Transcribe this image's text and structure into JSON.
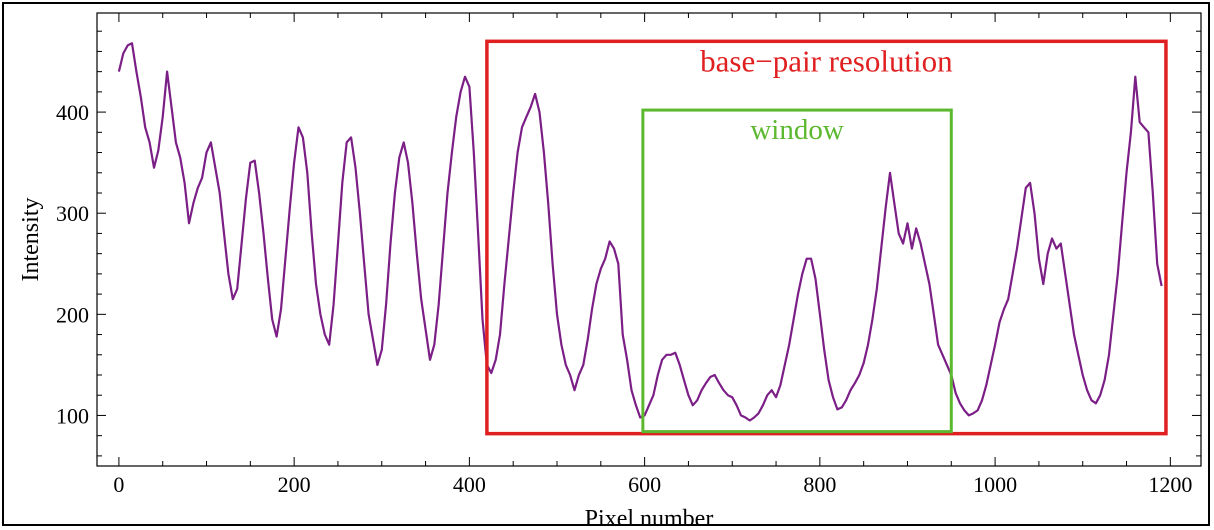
{
  "chart_data": {
    "type": "line",
    "title": "",
    "xlabel": "Pixel number",
    "ylabel": "Intensity",
    "xlim": [
      -25,
      1235
    ],
    "ylim": [
      50,
      498
    ],
    "xticks": [
      0,
      200,
      400,
      600,
      800,
      1000,
      1200
    ],
    "yticks": [
      100,
      200,
      300,
      400
    ],
    "grid": false,
    "line_color": "#7b1f86",
    "annotations": [
      {
        "label": "base−pair resolution",
        "color": "#e02020",
        "x_range": [
          420,
          1195
        ],
        "y_range": [
          82,
          470
        ]
      },
      {
        "label": "window",
        "color": "#5cb82e",
        "x_range": [
          598,
          950
        ],
        "y_range": [
          84,
          402
        ]
      }
    ],
    "series": [
      {
        "x": [
          0,
          5,
          10,
          15,
          20,
          25,
          30,
          35,
          40,
          45,
          50,
          55,
          60,
          65,
          70,
          75,
          80,
          85,
          90,
          95,
          100,
          105,
          110,
          115,
          120,
          125,
          130,
          135,
          140,
          145,
          150,
          155,
          160,
          165,
          170,
          175,
          180,
          185,
          190,
          195,
          200,
          205,
          210,
          215,
          220,
          225,
          230,
          235,
          240,
          245,
          250,
          255,
          260,
          265,
          270,
          275,
          280,
          285,
          290,
          295,
          300,
          305,
          310,
          315,
          320,
          325,
          330,
          335,
          340,
          345,
          350,
          355,
          360,
          365,
          370,
          375,
          380,
          385,
          390,
          395,
          400,
          405,
          410,
          415,
          420,
          425,
          430,
          435,
          440,
          445,
          450,
          455,
          460,
          465,
          470,
          475,
          480,
          485,
          490,
          495,
          500,
          505,
          510,
          515,
          520,
          525,
          530,
          535,
          540,
          545,
          550,
          555,
          560,
          565,
          570,
          575,
          580,
          585,
          590,
          595,
          600,
          605,
          610,
          615,
          620,
          625,
          630,
          635,
          640,
          645,
          650,
          655,
          660,
          665,
          670,
          675,
          680,
          685,
          690,
          695,
          700,
          705,
          710,
          715,
          720,
          725,
          730,
          735,
          740,
          745,
          750,
          755,
          760,
          765,
          770,
          775,
          780,
          785,
          790,
          795,
          800,
          805,
          810,
          815,
          820,
          825,
          830,
          835,
          840,
          845,
          850,
          855,
          860,
          865,
          870,
          875,
          880,
          885,
          890,
          895,
          900,
          905,
          910,
          915,
          920,
          925,
          930,
          935,
          940,
          945,
          950,
          955,
          960,
          965,
          970,
          975,
          980,
          985,
          990,
          995,
          1000,
          1005,
          1010,
          1015,
          1020,
          1025,
          1030,
          1035,
          1040,
          1045,
          1050,
          1055,
          1060,
          1065,
          1070,
          1075,
          1080,
          1085,
          1090,
          1095,
          1100,
          1105,
          1110,
          1115,
          1120,
          1125,
          1130,
          1135,
          1140,
          1145,
          1150,
          1155,
          1160,
          1165,
          1170,
          1175,
          1180,
          1185,
          1190
        ],
        "y": [
          440,
          458,
          466,
          468,
          440,
          415,
          385,
          370,
          345,
          362,
          395,
          440,
          405,
          370,
          355,
          330,
          290,
          310,
          325,
          335,
          360,
          370,
          345,
          320,
          280,
          240,
          215,
          225,
          270,
          315,
          350,
          352,
          320,
          280,
          235,
          195,
          178,
          205,
          255,
          305,
          350,
          385,
          375,
          340,
          280,
          230,
          200,
          180,
          170,
          210,
          270,
          330,
          370,
          375,
          345,
          300,
          250,
          200,
          175,
          150,
          165,
          210,
          270,
          320,
          355,
          370,
          350,
          310,
          260,
          215,
          185,
          155,
          170,
          210,
          265,
          320,
          360,
          395,
          420,
          435,
          425,
          360,
          280,
          195,
          150,
          142,
          155,
          180,
          230,
          275,
          320,
          360,
          385,
          395,
          405,
          418,
          400,
          360,
          310,
          250,
          200,
          170,
          150,
          140,
          125,
          140,
          150,
          175,
          205,
          230,
          245,
          255,
          272,
          265,
          250,
          180,
          155,
          125,
          110,
          98,
          100,
          110,
          120,
          140,
          155,
          160,
          160,
          162,
          150,
          135,
          120,
          110,
          115,
          125,
          132,
          138,
          140,
          132,
          125,
          120,
          118,
          110,
          100,
          98,
          95,
          98,
          102,
          110,
          120,
          125,
          118,
          130,
          150,
          170,
          195,
          220,
          240,
          255,
          255,
          235,
          200,
          165,
          135,
          118,
          106,
          108,
          115,
          125,
          132,
          140,
          152,
          170,
          195,
          225,
          265,
          305,
          340,
          310,
          280,
          270,
          290,
          265,
          285,
          270,
          250,
          230,
          200,
          170,
          160,
          150,
          140,
          122,
          112,
          105,
          100,
          102,
          105,
          115,
          130,
          150,
          170,
          192,
          205,
          215,
          240,
          265,
          295,
          325,
          330,
          300,
          255,
          230,
          260,
          275,
          265,
          270,
          240,
          210,
          180,
          160,
          140,
          125,
          115,
          112,
          120,
          135,
          160,
          200,
          240,
          290,
          340,
          380,
          435,
          390,
          385,
          380,
          320,
          250,
          228
        ]
      }
    ]
  }
}
